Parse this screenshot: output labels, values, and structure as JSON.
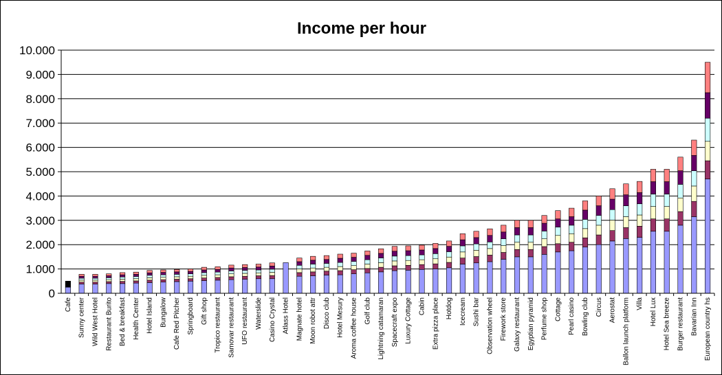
{
  "chart_data": {
    "type": "bar",
    "stacked": true,
    "title": "Income per hour",
    "xlabel": "",
    "ylabel": "",
    "ylim": [
      0,
      10000
    ],
    "yticks": [
      "0",
      "1.000",
      "2.000",
      "3.000",
      "4.000",
      "5.000",
      "6.000",
      "7.000",
      "8.000",
      "9.000",
      "10.000"
    ],
    "grid": true,
    "legend": "none",
    "categories": [
      "Cafe",
      "Sunny center",
      "Wild West Hotel",
      "Restaurant Burito",
      "Bed & breakfast",
      "Health Center",
      "Hotel Island",
      "Bungalow",
      "Cafe Red Pitcher",
      "Springboard",
      "Gift shop",
      "Tropico restaurant",
      "Samovar restaurant",
      "UFO restaurant",
      "Waterslide",
      "Casino Crystal",
      "Atlass Hotel",
      "Magnate hotel",
      "Moon robot attr",
      "Disco club",
      "Hotel Mesury",
      "Aroma coffee house",
      "Golf club",
      "Lightning catamaran",
      "Spacecraft expo",
      "Luxury Cottage",
      "Cabin",
      "Extra pizza place",
      "Hotdog",
      "Icecream",
      "Sushi bar",
      "Observation wheel",
      "Firework store",
      "Galaxy restaurant",
      "Egyptian pyramid",
      "Perfume shop",
      "Cottage",
      "Pearl casino",
      "Bowling club",
      "Circus",
      "Aerostat",
      "Ballon launch platform",
      "Villa",
      "Hotel Lux",
      "Hotel Sea breeze",
      "Burger restaurant",
      "Bavarian Inn",
      "European country hs"
    ],
    "series": [
      {
        "color": "#9999ff",
        "values": [
          250,
          380,
          380,
          400,
          400,
          420,
          440,
          460,
          480,
          500,
          520,
          540,
          560,
          580,
          600,
          600,
          1260,
          700,
          720,
          750,
          760,
          800,
          840,
          880,
          930,
          950,
          980,
          1000,
          1050,
          1200,
          1250,
          1300,
          1400,
          1500,
          1500,
          1600,
          1700,
          1750,
          1900,
          2000,
          2150,
          2250,
          2300,
          2550,
          2550,
          2800,
          3150,
          4700
        ]
      },
      {
        "color": "#000000",
        "values": [
          250,
          0,
          0,
          0,
          0,
          0,
          0,
          0,
          0,
          0,
          0,
          0,
          0,
          0,
          0,
          0,
          0,
          0,
          0,
          0,
          0,
          0,
          0,
          0,
          0,
          0,
          0,
          0,
          0,
          0,
          0,
          0,
          0,
          0,
          0,
          0,
          0,
          0,
          0,
          0,
          0,
          0,
          0,
          0,
          0,
          0,
          0,
          0
        ]
      },
      {
        "color": "#993366",
        "values": [
          0,
          80,
          80,
          80,
          90,
          90,
          100,
          100,
          100,
          100,
          110,
          110,
          120,
          120,
          120,
          130,
          0,
          150,
          160,
          160,
          170,
          170,
          180,
          190,
          200,
          200,
          200,
          210,
          220,
          250,
          260,
          270,
          280,
          300,
          300,
          320,
          340,
          350,
          380,
          400,
          430,
          450,
          460,
          510,
          510,
          560,
          630,
          750
        ]
      },
      {
        "color": "#ffffcc",
        "values": [
          0,
          80,
          80,
          80,
          90,
          90,
          100,
          100,
          100,
          100,
          110,
          110,
          120,
          120,
          120,
          130,
          0,
          150,
          160,
          160,
          170,
          170,
          180,
          190,
          200,
          200,
          200,
          210,
          220,
          250,
          260,
          270,
          280,
          300,
          300,
          320,
          340,
          350,
          380,
          400,
          430,
          450,
          460,
          510,
          510,
          560,
          630,
          800
        ]
      },
      {
        "color": "#ccffff",
        "values": [
          0,
          80,
          80,
          80,
          90,
          90,
          100,
          100,
          100,
          100,
          110,
          110,
          120,
          120,
          120,
          130,
          0,
          150,
          160,
          160,
          170,
          170,
          180,
          190,
          200,
          200,
          200,
          210,
          220,
          250,
          260,
          270,
          280,
          300,
          300,
          320,
          340,
          350,
          380,
          400,
          430,
          450,
          460,
          510,
          510,
          560,
          630,
          950
        ]
      },
      {
        "color": "#660066",
        "values": [
          0,
          80,
          80,
          80,
          90,
          90,
          100,
          100,
          100,
          100,
          110,
          110,
          120,
          120,
          120,
          130,
          0,
          150,
          160,
          160,
          170,
          170,
          180,
          190,
          200,
          200,
          200,
          210,
          220,
          250,
          260,
          270,
          280,
          300,
          300,
          320,
          340,
          350,
          380,
          400,
          430,
          450,
          460,
          510,
          510,
          560,
          630,
          1050
        ]
      },
      {
        "color": "#ff8080",
        "values": [
          0,
          80,
          80,
          80,
          90,
          90,
          100,
          100,
          100,
          100,
          110,
          110,
          120,
          120,
          120,
          130,
          0,
          150,
          160,
          160,
          170,
          170,
          180,
          190,
          200,
          200,
          200,
          210,
          220,
          250,
          260,
          270,
          280,
          300,
          300,
          320,
          340,
          350,
          380,
          400,
          430,
          450,
          460,
          510,
          510,
          560,
          630,
          1250
        ]
      }
    ]
  }
}
